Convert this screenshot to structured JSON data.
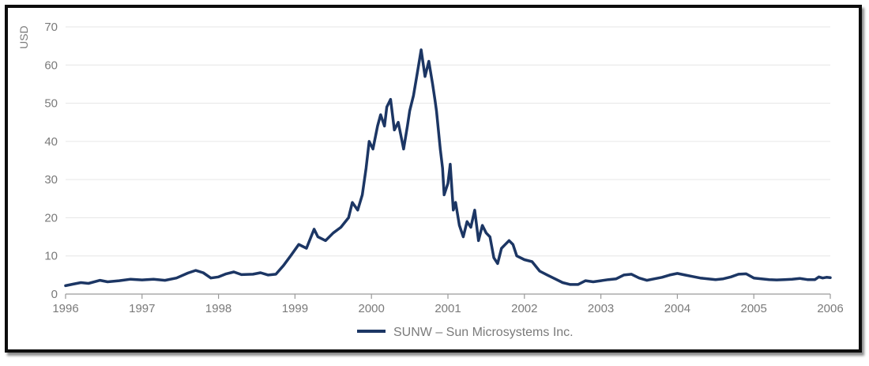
{
  "chart_data": {
    "type": "line",
    "title": "",
    "xlabel": "",
    "ylabel": "USD",
    "xlim": [
      1996,
      2006
    ],
    "ylim": [
      0,
      70
    ],
    "x_ticks": [
      "1996",
      "1997",
      "1998",
      "1999",
      "2000",
      "2001",
      "2002",
      "2003",
      "2004",
      "2005",
      "2006"
    ],
    "y_ticks": [
      "0",
      "10",
      "20",
      "30",
      "40",
      "50",
      "60",
      "70"
    ],
    "grid": true,
    "legend_position": "bottom-center",
    "colors": {
      "line": "#1c3664",
      "grid": "#e6e6e6",
      "axis": "#9a9a9a",
      "text": "#7a7a7a"
    },
    "series": [
      {
        "name": "SUNW – Sun Microsystems Inc.",
        "points": [
          [
            1996.0,
            2.2
          ],
          [
            1996.1,
            2.6
          ],
          [
            1996.2,
            3.0
          ],
          [
            1996.3,
            2.8
          ],
          [
            1996.45,
            3.6
          ],
          [
            1996.55,
            3.2
          ],
          [
            1996.7,
            3.5
          ],
          [
            1996.85,
            3.9
          ],
          [
            1997.0,
            3.7
          ],
          [
            1997.15,
            3.9
          ],
          [
            1997.3,
            3.6
          ],
          [
            1997.45,
            4.2
          ],
          [
            1997.6,
            5.5
          ],
          [
            1997.7,
            6.2
          ],
          [
            1997.8,
            5.6
          ],
          [
            1997.9,
            4.2
          ],
          [
            1998.0,
            4.5
          ],
          [
            1998.1,
            5.3
          ],
          [
            1998.2,
            5.8
          ],
          [
            1998.3,
            5.1
          ],
          [
            1998.45,
            5.2
          ],
          [
            1998.55,
            5.6
          ],
          [
            1998.65,
            5.0
          ],
          [
            1998.75,
            5.2
          ],
          [
            1998.85,
            7.5
          ],
          [
            1998.95,
            10.2
          ],
          [
            1999.05,
            13.0
          ],
          [
            1999.15,
            12.0
          ],
          [
            1999.25,
            17.0
          ],
          [
            1999.3,
            15.0
          ],
          [
            1999.4,
            14.0
          ],
          [
            1999.5,
            16.0
          ],
          [
            1999.6,
            17.5
          ],
          [
            1999.7,
            20.0
          ],
          [
            1999.75,
            24.0
          ],
          [
            1999.82,
            22.0
          ],
          [
            1999.88,
            26.0
          ],
          [
            1999.93,
            33.0
          ],
          [
            1999.97,
            40.0
          ],
          [
            2000.02,
            38.0
          ],
          [
            2000.08,
            44.0
          ],
          [
            2000.12,
            47.0
          ],
          [
            2000.17,
            44.0
          ],
          [
            2000.2,
            49.0
          ],
          [
            2000.25,
            51.0
          ],
          [
            2000.3,
            43.0
          ],
          [
            2000.35,
            45.0
          ],
          [
            2000.42,
            38.0
          ],
          [
            2000.47,
            44.0
          ],
          [
            2000.5,
            48.0
          ],
          [
            2000.55,
            52.0
          ],
          [
            2000.6,
            58.0
          ],
          [
            2000.65,
            64.0
          ],
          [
            2000.7,
            57.0
          ],
          [
            2000.75,
            61.0
          ],
          [
            2000.8,
            55.0
          ],
          [
            2000.83,
            51.0
          ],
          [
            2000.85,
            48.0
          ],
          [
            2000.9,
            38.0
          ],
          [
            2000.93,
            33.0
          ],
          [
            2000.95,
            26.0
          ],
          [
            2001.0,
            29.0
          ],
          [
            2001.03,
            34.0
          ],
          [
            2001.07,
            22.0
          ],
          [
            2001.1,
            24.0
          ],
          [
            2001.15,
            18.0
          ],
          [
            2001.2,
            15.0
          ],
          [
            2001.25,
            19.0
          ],
          [
            2001.3,
            17.5
          ],
          [
            2001.35,
            22.0
          ],
          [
            2001.4,
            14.0
          ],
          [
            2001.45,
            18.0
          ],
          [
            2001.5,
            16.0
          ],
          [
            2001.55,
            15.0
          ],
          [
            2001.6,
            9.5
          ],
          [
            2001.65,
            8.0
          ],
          [
            2001.7,
            12.0
          ],
          [
            2001.75,
            13.0
          ],
          [
            2001.8,
            14.0
          ],
          [
            2001.85,
            13.0
          ],
          [
            2001.9,
            10.0
          ],
          [
            2002.0,
            9.0
          ],
          [
            2002.1,
            8.5
          ],
          [
            2002.2,
            6.0
          ],
          [
            2002.3,
            5.0
          ],
          [
            2002.4,
            4.0
          ],
          [
            2002.5,
            3.0
          ],
          [
            2002.6,
            2.5
          ],
          [
            2002.7,
            2.5
          ],
          [
            2002.8,
            3.5
          ],
          [
            2002.9,
            3.2
          ],
          [
            2003.0,
            3.5
          ],
          [
            2003.1,
            3.8
          ],
          [
            2003.2,
            4.0
          ],
          [
            2003.3,
            5.0
          ],
          [
            2003.4,
            5.2
          ],
          [
            2003.5,
            4.2
          ],
          [
            2003.6,
            3.6
          ],
          [
            2003.7,
            4.0
          ],
          [
            2003.8,
            4.4
          ],
          [
            2003.9,
            5.0
          ],
          [
            2004.0,
            5.4
          ],
          [
            2004.1,
            5.0
          ],
          [
            2004.2,
            4.6
          ],
          [
            2004.3,
            4.2
          ],
          [
            2004.4,
            4.0
          ],
          [
            2004.5,
            3.8
          ],
          [
            2004.6,
            4.0
          ],
          [
            2004.7,
            4.5
          ],
          [
            2004.8,
            5.2
          ],
          [
            2004.9,
            5.3
          ],
          [
            2005.0,
            4.2
          ],
          [
            2005.1,
            4.0
          ],
          [
            2005.2,
            3.8
          ],
          [
            2005.3,
            3.7
          ],
          [
            2005.4,
            3.8
          ],
          [
            2005.5,
            3.9
          ],
          [
            2005.6,
            4.1
          ],
          [
            2005.7,
            3.8
          ],
          [
            2005.8,
            3.8
          ],
          [
            2005.85,
            4.5
          ],
          [
            2005.9,
            4.2
          ],
          [
            2005.95,
            4.4
          ],
          [
            2006.0,
            4.3
          ]
        ]
      }
    ]
  }
}
